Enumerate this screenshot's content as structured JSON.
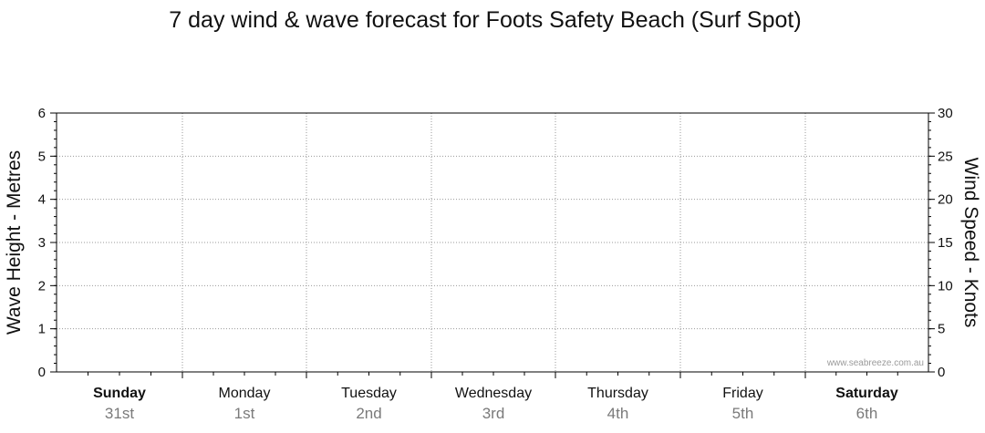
{
  "chart_data": {
    "type": "line",
    "title": "7 day wind & wave forecast for Foots Safety Beach (Surf Spot)",
    "ylabel_left": "Wave Height - Metres",
    "ylabel_right": "Wind Speed - Knots",
    "ylim_left": [
      0,
      6
    ],
    "ylim_right": [
      0,
      30
    ],
    "yticks_left": [
      0,
      1,
      2,
      3,
      4,
      5,
      6
    ],
    "yticks_right": [
      0,
      5,
      10,
      15,
      20,
      25,
      30
    ],
    "grid": true,
    "days": [
      {
        "day": "Sunday",
        "date": "31st",
        "bold": true
      },
      {
        "day": "Monday",
        "date": "1st",
        "bold": false
      },
      {
        "day": "Tuesday",
        "date": "2nd",
        "bold": false
      },
      {
        "day": "Wednesday",
        "date": "3rd",
        "bold": false
      },
      {
        "day": "Thursday",
        "date": "4th",
        "bold": false
      },
      {
        "day": "Friday",
        "date": "5th",
        "bold": false
      },
      {
        "day": "Saturday",
        "date": "6th",
        "bold": true
      }
    ],
    "series": [],
    "watermark": "www.seabreeze.com.au"
  }
}
